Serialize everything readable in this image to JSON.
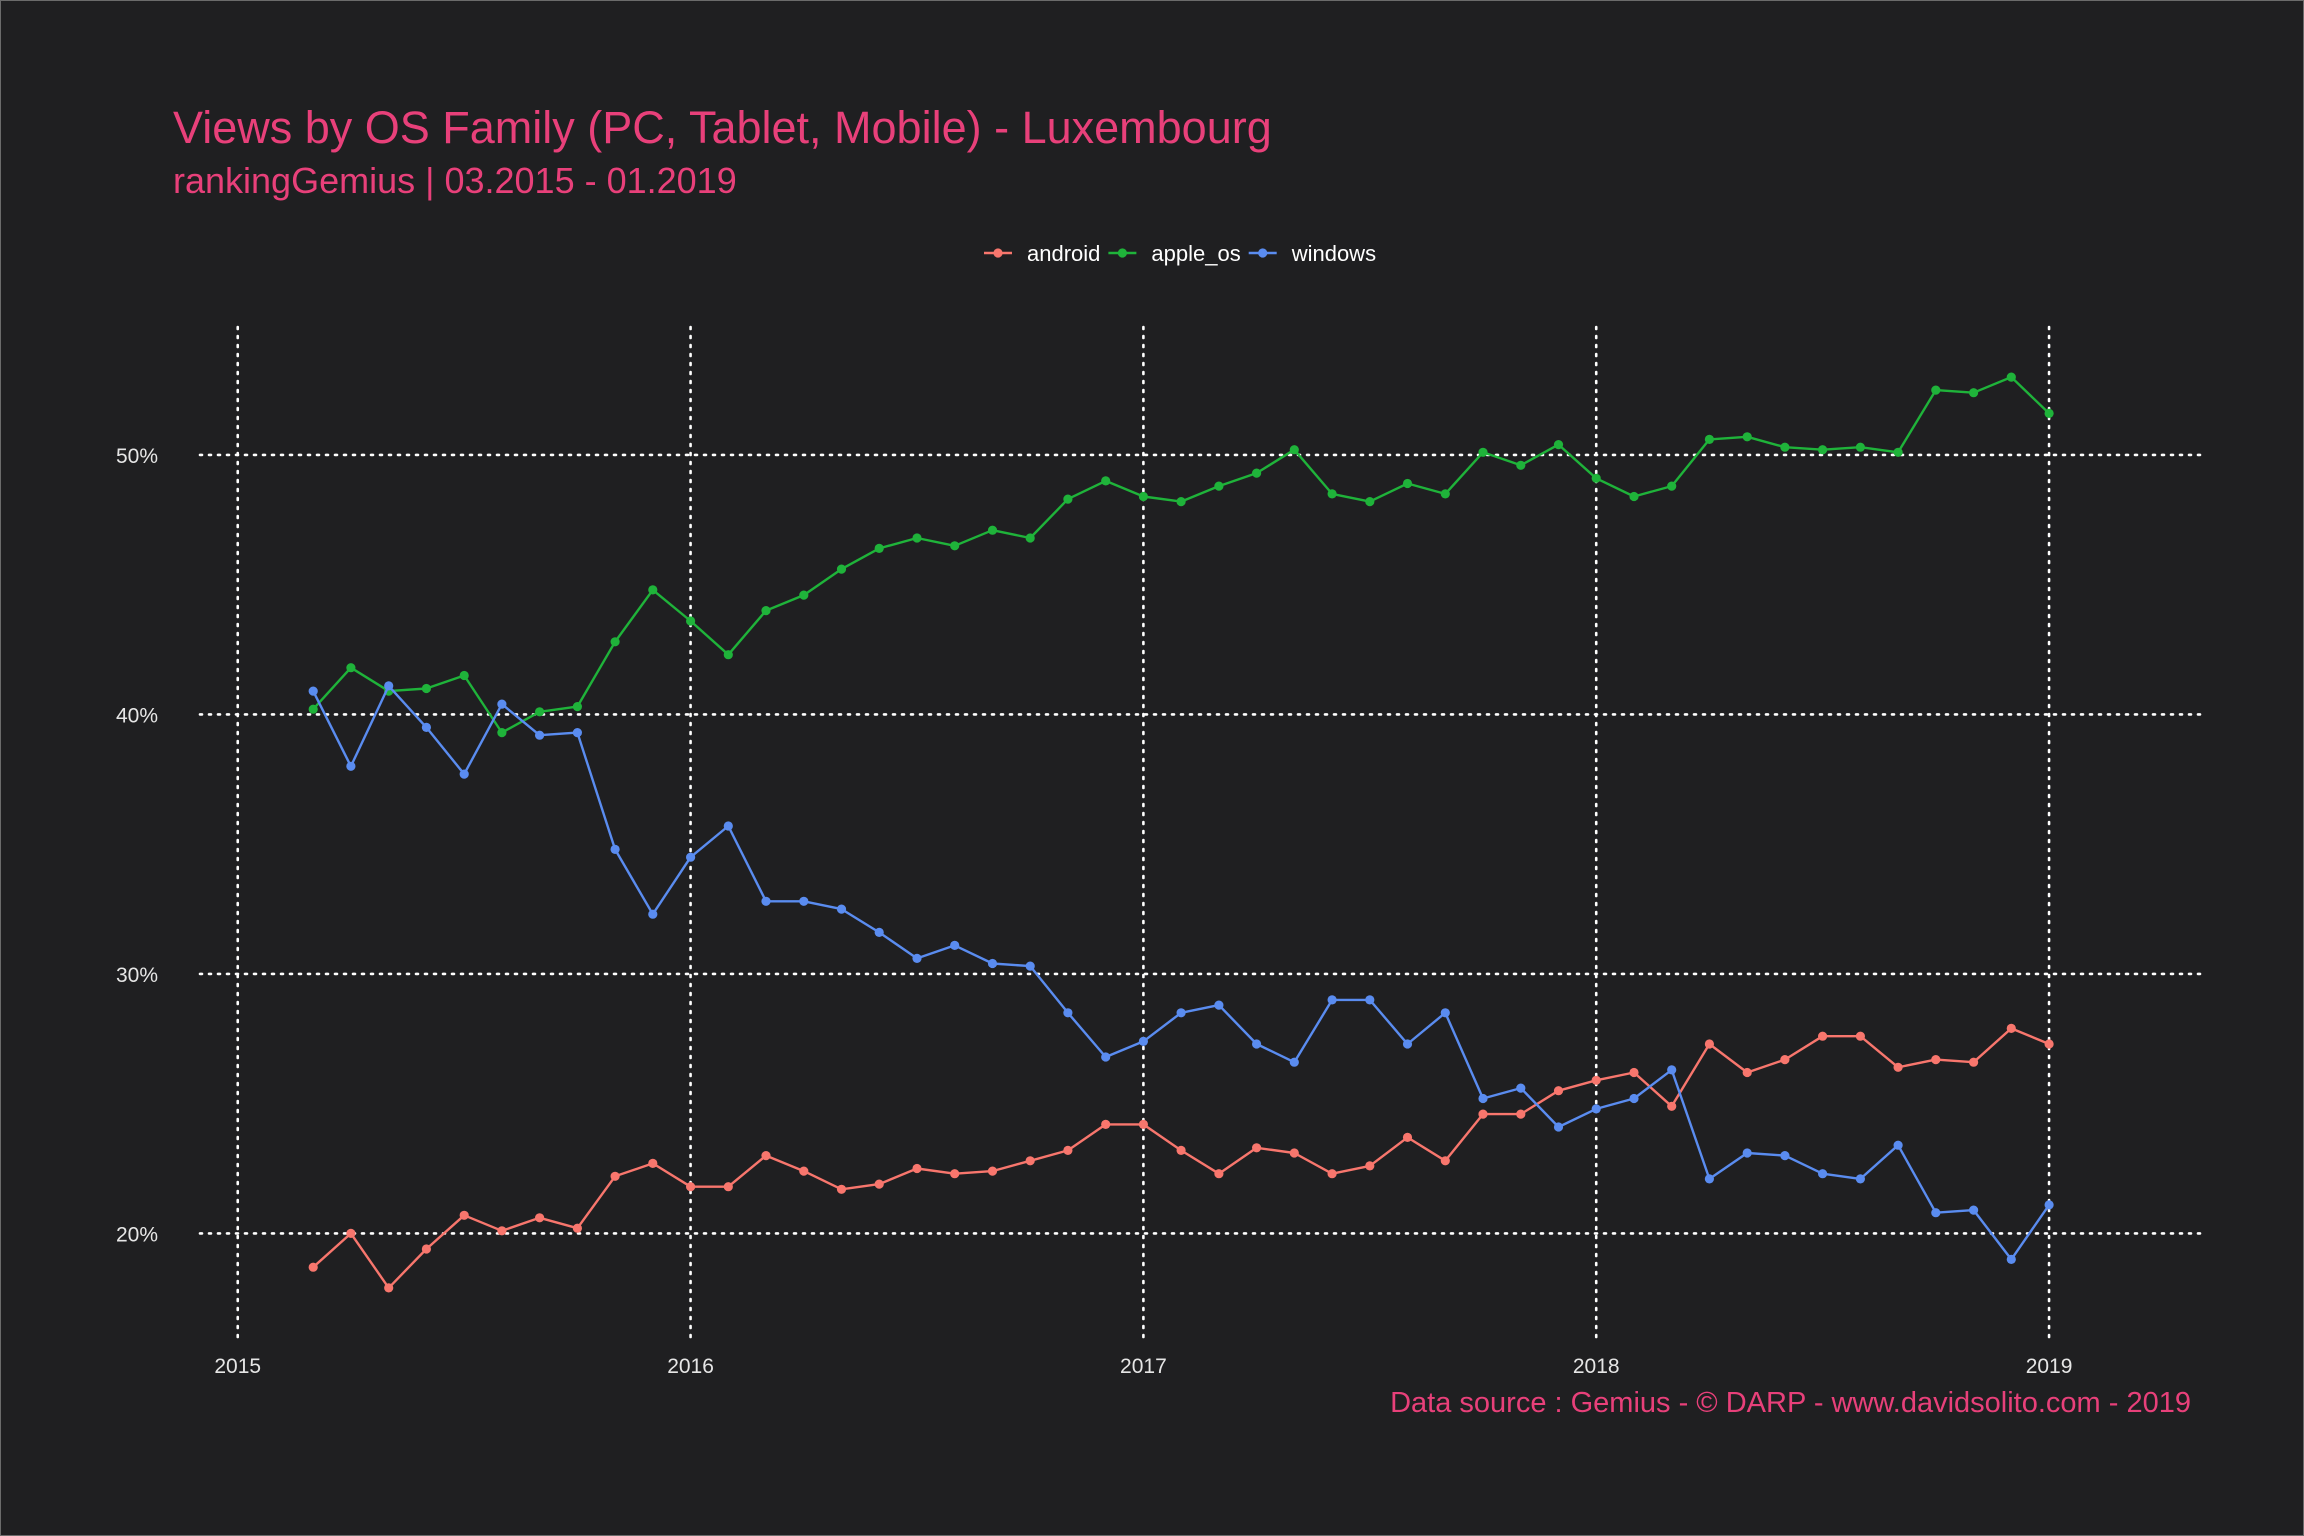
{
  "chart_data": {
    "type": "line",
    "title": "Views by OS Family (PC, Tablet, Mobile) - Luxembourg",
    "subtitle": "rankingGemius | 03.2015 - 01.2019",
    "caption": "Data source : Gemius - © DARP - www.davidsolito.com - 2019",
    "xlabel": "",
    "ylabel": "",
    "x_ticks": [
      "2015",
      "2016",
      "2017",
      "2018",
      "2019"
    ],
    "y_ticks": [
      {
        "value": 20,
        "label": "20%"
      },
      {
        "value": 30,
        "label": "30%"
      },
      {
        "value": 40,
        "label": "40%"
      },
      {
        "value": 50,
        "label": "50%"
      }
    ],
    "xlim": [
      "2014-12",
      "2019-05"
    ],
    "ylim": [
      15.7,
      55.2
    ],
    "grid": true,
    "legend_position": "top",
    "x": [
      "2015-03",
      "2015-04",
      "2015-05",
      "2015-06",
      "2015-07",
      "2015-08",
      "2015-09",
      "2015-10",
      "2015-11",
      "2015-12",
      "2016-01",
      "2016-02",
      "2016-03",
      "2016-04",
      "2016-05",
      "2016-06",
      "2016-07",
      "2016-08",
      "2016-09",
      "2016-10",
      "2016-11",
      "2016-12",
      "2017-01",
      "2017-02",
      "2017-03",
      "2017-04",
      "2017-05",
      "2017-06",
      "2017-07",
      "2017-08",
      "2017-09",
      "2017-10",
      "2017-11",
      "2017-12",
      "2018-01",
      "2018-02",
      "2018-03",
      "2018-04",
      "2018-05",
      "2018-06",
      "2018-07",
      "2018-08",
      "2018-09",
      "2018-10",
      "2018-11",
      "2018-12",
      "2019-01"
    ],
    "series": [
      {
        "name": "android",
        "color": "#f8766d",
        "values": [
          18.7,
          20.0,
          17.9,
          19.4,
          20.7,
          20.1,
          20.6,
          20.2,
          22.2,
          22.7,
          21.8,
          21.8,
          23.0,
          22.4,
          21.7,
          21.9,
          22.5,
          22.3,
          22.4,
          22.8,
          23.2,
          24.2,
          24.2,
          23.2,
          22.3,
          23.3,
          23.1,
          22.3,
          22.6,
          23.7,
          22.8,
          24.6,
          24.6,
          25.5,
          25.9,
          26.2,
          24.9,
          27.3,
          26.2,
          26.7,
          27.6,
          27.6,
          26.4,
          26.7,
          26.6,
          27.9,
          27.3
        ]
      },
      {
        "name": "apple_os",
        "color": "#1fb33a",
        "values": [
          40.2,
          41.8,
          40.9,
          41.0,
          41.5,
          39.3,
          40.1,
          40.3,
          42.8,
          44.8,
          43.6,
          42.3,
          44.0,
          44.6,
          45.6,
          46.4,
          46.8,
          46.5,
          47.1,
          46.8,
          48.3,
          49.0,
          48.4,
          48.2,
          48.8,
          49.3,
          50.2,
          48.5,
          48.2,
          48.9,
          48.5,
          50.1,
          49.6,
          50.4,
          49.1,
          48.4,
          48.8,
          50.6,
          50.7,
          50.3,
          50.2,
          50.3,
          50.1,
          52.5,
          52.4,
          53.0,
          51.6
        ]
      },
      {
        "name": "windows",
        "color": "#5a8cf0",
        "values": [
          40.9,
          38.0,
          41.1,
          39.5,
          37.7,
          40.4,
          39.2,
          39.3,
          34.8,
          32.3,
          34.5,
          35.7,
          32.8,
          32.8,
          32.5,
          31.6,
          30.6,
          31.1,
          30.4,
          30.3,
          28.5,
          26.8,
          27.4,
          28.5,
          28.8,
          27.3,
          26.6,
          29.0,
          29.0,
          27.3,
          28.5,
          25.2,
          25.6,
          24.1,
          24.8,
          25.2,
          26.3,
          22.1,
          23.1,
          23.0,
          22.3,
          22.1,
          23.4,
          20.8,
          20.9,
          19.0,
          21.1
        ]
      }
    ]
  }
}
